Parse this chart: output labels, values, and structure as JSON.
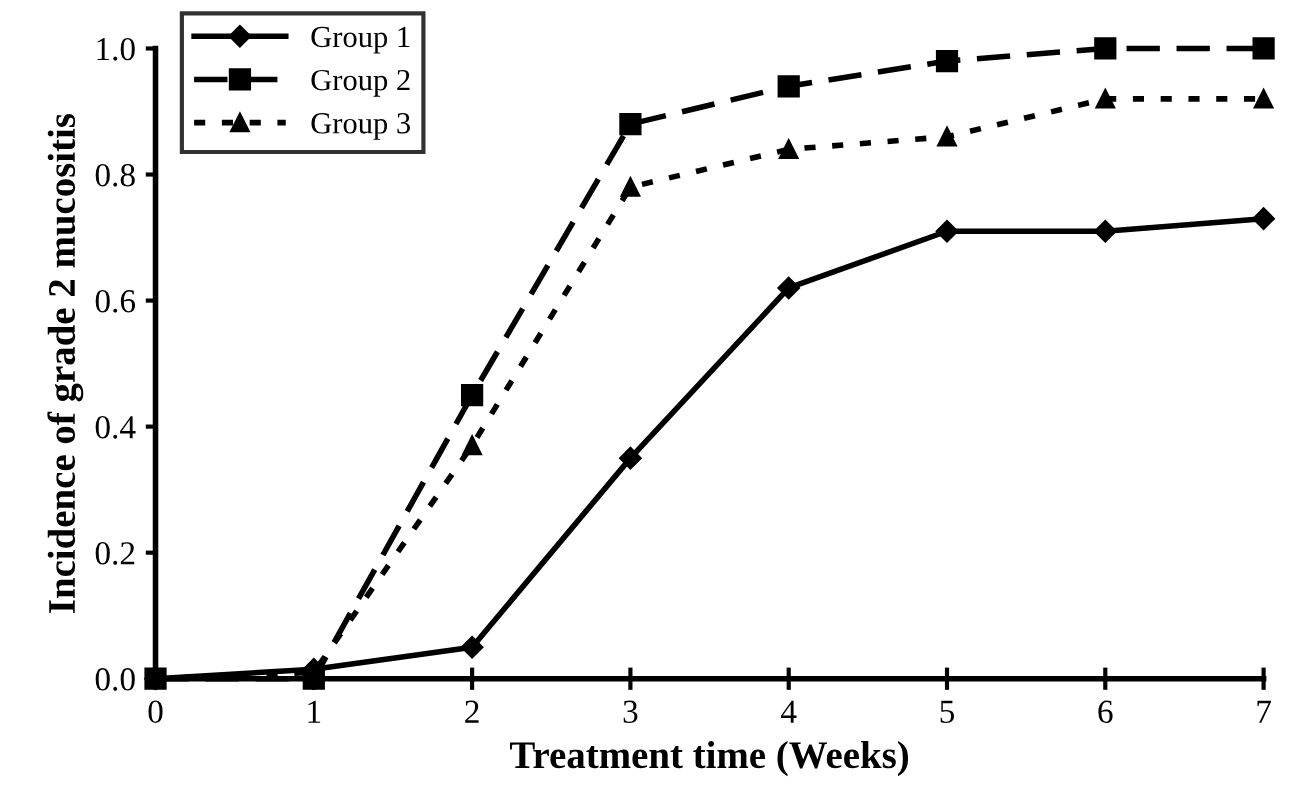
{
  "chart_data": {
    "type": "line",
    "xlabel": "Treatment time (Weeks)",
    "ylabel": "Incidence of grade 2 mucositis",
    "x": [
      0,
      1,
      2,
      3,
      4,
      5,
      6,
      7
    ],
    "series": [
      {
        "name": "Group 1",
        "color": "#000000",
        "marker": "diamond",
        "line_style": "solid",
        "values": [
          0,
          0.015,
          0.05,
          0.35,
          0.62,
          0.71,
          0.71,
          0.73
        ]
      },
      {
        "name": "Group 2",
        "color": "#000000",
        "marker": "square",
        "line_style": "dashed",
        "values": [
          0,
          0,
          0.45,
          0.88,
          0.94,
          0.98,
          1.0,
          1.0
        ]
      },
      {
        "name": "Group 3",
        "color": "#000000",
        "marker": "triangle",
        "line_style": "dotted",
        "values": [
          0,
          0.01,
          0.37,
          0.78,
          0.84,
          0.86,
          0.92,
          0.92
        ]
      }
    ],
    "xlim": [
      0,
      7
    ],
    "ylim": [
      0,
      1.0
    ],
    "xticks": [
      0,
      1,
      2,
      3,
      4,
      5,
      6,
      7
    ],
    "yticks": [
      {
        "value": 0,
        "label": "0.0"
      },
      {
        "value": 0.2,
        "label": "0.2"
      },
      {
        "value": 0.4,
        "label": "0.4"
      },
      {
        "value": 0.6,
        "label": "0.6"
      },
      {
        "value": 0.8,
        "label": "0.8"
      },
      {
        "value": 1.0,
        "label": "1.0"
      }
    ],
    "grid": false,
    "legend": "top left"
  }
}
